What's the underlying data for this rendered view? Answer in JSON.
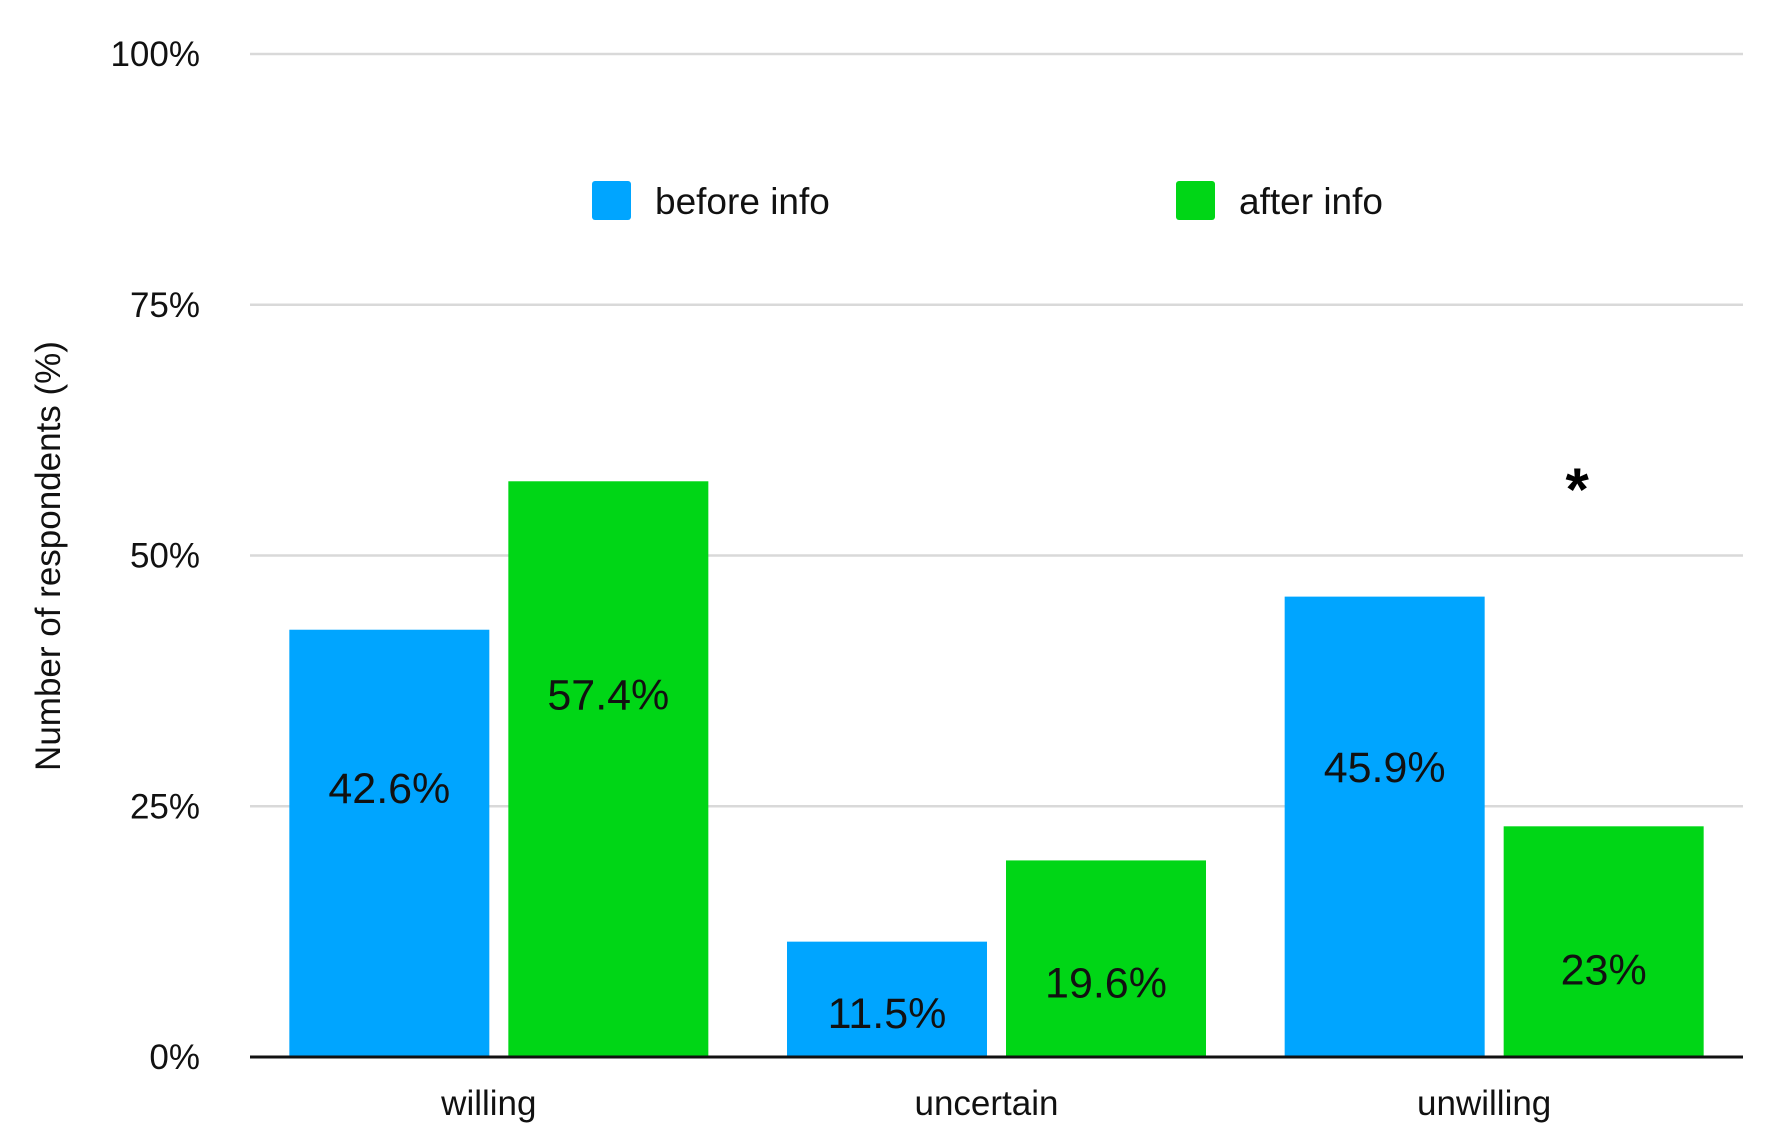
{
  "chart_data": {
    "type": "bar",
    "title": "",
    "xlabel": "",
    "ylabel": "Number of respondents (%)",
    "ylim": [
      0,
      100
    ],
    "yticks": [
      "0%",
      "25%",
      "50%",
      "75%",
      "100%"
    ],
    "ytick_values": [
      0,
      25,
      50,
      75,
      100
    ],
    "grid": true,
    "legend_placement": "top-center",
    "categories": [
      "willing",
      "uncertain",
      "unwilling"
    ],
    "series": [
      {
        "name": "before info",
        "color": "#00a5ff",
        "values": [
          42.6,
          11.5,
          45.9
        ],
        "labels": [
          "42.6%",
          "11.5%",
          "45.9%"
        ]
      },
      {
        "name": "after info",
        "color": "#00d616",
        "values": [
          57.4,
          19.6,
          23
        ],
        "labels": [
          "57.4%",
          "19.6%",
          "23%"
        ]
      }
    ],
    "annotations": [
      {
        "text": "*",
        "category": "unwilling"
      }
    ]
  }
}
